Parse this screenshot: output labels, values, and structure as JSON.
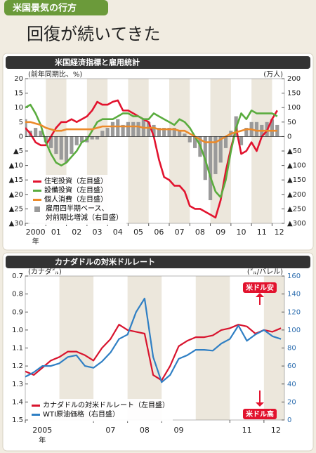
{
  "header": {
    "tag": "米国景気の行方",
    "title": "回復が続いてきた"
  },
  "chart_data": [
    {
      "type": "combo",
      "title": "米国経済指標と雇用統計",
      "y_label": "(前年同期比、%)",
      "y2_label": "(万人)",
      "x_unit": "年",
      "x": [
        2000,
        2000.25,
        2000.5,
        2000.75,
        2001,
        2001.25,
        2001.5,
        2001.75,
        2002,
        2002.25,
        2002.5,
        2002.75,
        2003,
        2003.25,
        2003.5,
        2003.75,
        2004,
        2004.25,
        2004.5,
        2004.75,
        2005,
        2005.25,
        2005.5,
        2005.75,
        2006,
        2006.25,
        2006.5,
        2006.75,
        2007,
        2007.25,
        2007.5,
        2007.75,
        2008,
        2008.25,
        2008.5,
        2008.75,
        2009,
        2009.25,
        2009.5,
        2009.75,
        2010,
        2010.25,
        2010.5,
        2010.75,
        2011,
        2011.25,
        2011.5,
        2011.75,
        2012,
        2012.25
      ],
      "xlim": [
        2000,
        2012.6
      ],
      "xticks": [
        {
          "value": 2000,
          "label": "2000"
        },
        {
          "value": 2001,
          "label": "01"
        },
        {
          "value": 2002,
          "label": "02"
        },
        {
          "value": 2003,
          "label": "03"
        },
        {
          "value": 2004,
          "label": "04"
        },
        {
          "value": 2005,
          "label": "05"
        },
        {
          "value": 2006,
          "label": "06"
        },
        {
          "value": 2007,
          "label": "07"
        },
        {
          "value": 2008,
          "label": "08"
        },
        {
          "value": 2009,
          "label": "09"
        },
        {
          "value": 2010,
          "label": "10"
        },
        {
          "value": 2011,
          "label": "11"
        },
        {
          "value": 2012,
          "label": "12"
        }
      ],
      "ylim": [
        -30,
        20
      ],
      "yticks": [
        20,
        15,
        10,
        5,
        0,
        {
          "value": -5,
          "label": "▲5"
        },
        {
          "value": -10,
          "label": "▲10"
        },
        {
          "value": -15,
          "label": "▲15"
        },
        {
          "value": -20,
          "label": "▲20"
        },
        {
          "value": -25,
          "label": "▲25"
        },
        {
          "value": -30,
          "label": "▲30"
        }
      ],
      "y2lim": [
        -300,
        200
      ],
      "y2ticks": [
        200,
        150,
        100,
        50,
        0,
        {
          "value": -50,
          "label": "▲50"
        },
        {
          "value": -100,
          "label": "▲100"
        },
        {
          "value": -150,
          "label": "▲150"
        },
        {
          "value": -200,
          "label": "▲200"
        },
        {
          "value": -250,
          "label": "▲250"
        },
        {
          "value": -300,
          "label": "▲300"
        }
      ],
      "shaded_bands": true,
      "zero_line": true,
      "legend": "bottom-left",
      "series": [
        {
          "name": "住宅投資（左目盛）",
          "type": "line",
          "color": "#e2132e",
          "values": [
            3,
            1,
            -2,
            -3,
            -3,
            0,
            3,
            5,
            5,
            6,
            5,
            6,
            7,
            9,
            12,
            11,
            11,
            12,
            12.5,
            9,
            9,
            8,
            7,
            6,
            5,
            0,
            -8,
            -14,
            -15,
            -17,
            -17,
            -19,
            -24,
            -25,
            -25,
            -26,
            -27,
            -28,
            -22,
            -12,
            -4,
            3,
            -6,
            -5,
            -2,
            -5,
            0,
            2,
            6,
            9
          ]
        },
        {
          "name": "設備投資（左目盛）",
          "type": "line",
          "color": "#5aac3e",
          "values": [
            10,
            11,
            8,
            4,
            -2,
            -6,
            -9,
            -10,
            -9,
            -7,
            -5,
            -2,
            -1,
            2,
            5,
            6,
            6,
            6,
            7,
            8,
            8,
            7,
            7,
            6,
            6,
            8,
            7,
            6,
            5,
            4,
            6,
            5,
            3,
            0,
            -3,
            -8,
            -14,
            -19,
            -21,
            -15,
            -5,
            3,
            8,
            6,
            9,
            8,
            8,
            8,
            8,
            7
          ]
        },
        {
          "name": "個人消費（左目盛）",
          "type": "line",
          "color": "#ec8a2a",
          "values": [
            5,
            5,
            4.5,
            4,
            3,
            2.5,
            2,
            2,
            2.5,
            2.5,
            2.5,
            2.5,
            2.5,
            2.5,
            3,
            3.5,
            3.5,
            3.5,
            3.5,
            3.5,
            3.5,
            3.5,
            3.5,
            3,
            3,
            3,
            2.5,
            2.5,
            2.5,
            2.5,
            2,
            2,
            1,
            0,
            -1,
            -2,
            -2,
            -2,
            -1,
            0,
            1,
            1.5,
            2,
            2.5,
            2.5,
            2,
            2,
            2,
            2,
            2
          ]
        },
        {
          "name": "雇用四半期ベース、\n対前期比増減（右目盛）",
          "type": "bar",
          "axis": "y2",
          "color": "#9a9a9a",
          "values": [
            60,
            20,
            30,
            20,
            -20,
            -40,
            -60,
            -80,
            -90,
            -60,
            -30,
            -20,
            -20,
            -10,
            -10,
            20,
            30,
            50,
            60,
            40,
            50,
            50,
            50,
            60,
            50,
            40,
            30,
            30,
            30,
            30,
            20,
            10,
            -20,
            -40,
            -70,
            -150,
            -220,
            -130,
            -90,
            -40,
            20,
            70,
            -30,
            30,
            50,
            50,
            40,
            50,
            60,
            40
          ]
        }
      ]
    },
    {
      "type": "line",
      "title": "カナダドルの対米ドルレート",
      "y_label": "(カナダ㌦)",
      "y2_label": "(㌦/バレル)",
      "x_unit": "年",
      "x": [
        2005,
        2005.25,
        2005.5,
        2005.75,
        2006,
        2006.25,
        2006.5,
        2006.75,
        2007,
        2007.25,
        2007.5,
        2007.75,
        2008,
        2008.25,
        2008.5,
        2008.75,
        2009,
        2009.25,
        2009.5,
        2009.75,
        2010,
        2010.25,
        2010.5,
        2010.75,
        2011,
        2011.25,
        2011.5,
        2011.75,
        2012,
        2012.25,
        2012.5
      ],
      "xlim": [
        2005,
        2012.6
      ],
      "xticks": [
        {
          "value": 2005,
          "label": "2005"
        },
        {
          "value": 2007,
          "label": "07"
        },
        {
          "value": 2008,
          "label": "08"
        },
        {
          "value": 2009,
          "label": "09"
        },
        {
          "value": 2011,
          "label": "11"
        },
        {
          "value": 2012,
          "label": "12"
        }
      ],
      "ylim": [
        0.7,
        1.5
      ],
      "invert_y": true,
      "yticks": [
        0.7,
        0.8,
        0.9,
        {
          "value": 1,
          "label": "1.0"
        },
        1.1,
        1.2,
        1.3,
        1.4,
        1.5
      ],
      "y2lim": [
        0,
        160
      ],
      "y2ticks": [
        160,
        140,
        120,
        100,
        80,
        60,
        40,
        20,
        0
      ],
      "shaded_bands": true,
      "legend": "bottom-left",
      "annotations": [
        "米ドル安",
        "米ドル高"
      ],
      "series": [
        {
          "name": "カナダドルの対米ドルレート（左目盛）",
          "type": "line",
          "color": "#d8142e",
          "values": [
            1.23,
            1.25,
            1.21,
            1.17,
            1.15,
            1.12,
            1.12,
            1.14,
            1.17,
            1.1,
            1.05,
            0.97,
            1,
            1.01,
            1.02,
            1.25,
            1.28,
            1.2,
            1.09,
            1.06,
            1.04,
            1.04,
            1.03,
            1,
            0.99,
            0.97,
            0.98,
            1.02,
            1,
            1.01,
            0.99
          ]
        },
        {
          "name": "WTI原油価格（右目盛）",
          "type": "line",
          "axis": "y2",
          "color": "#2f7fc4",
          "values": [
            48,
            53,
            60,
            60,
            63,
            70,
            72,
            60,
            58,
            65,
            75,
            90,
            95,
            120,
            135,
            70,
            42,
            50,
            68,
            72,
            78,
            78,
            77,
            85,
            90,
            105,
            88,
            95,
            100,
            93,
            90
          ]
        }
      ]
    }
  ]
}
